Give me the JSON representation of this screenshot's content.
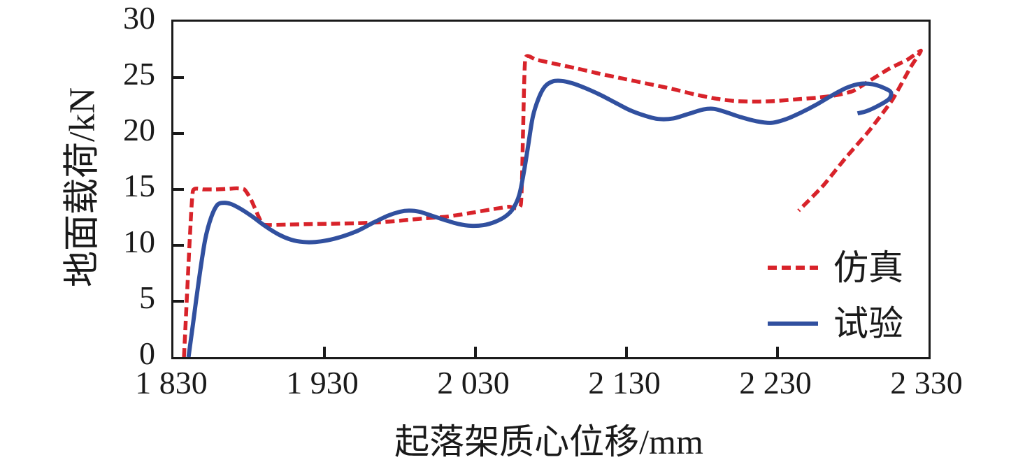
{
  "figure": {
    "background": "#ffffff",
    "axis_color": "#1a1a1a",
    "ylabel": "地面载荷/kN",
    "xlabel": "起落架质心位移/mm",
    "x_tick_labels": [
      "1 830",
      "1 930",
      "2 030",
      "2 130",
      "2 230",
      "2 330"
    ],
    "x_tick_values": [
      1830,
      1930,
      2030,
      2130,
      2230,
      2330
    ],
    "y_tick_labels": [
      "0",
      "5",
      "10",
      "15",
      "20",
      "25",
      "30"
    ],
    "y_tick_values": [
      0,
      5,
      10,
      15,
      20,
      25,
      30
    ],
    "legend": [
      {
        "label": "仿真",
        "color": "#d8232a",
        "dash": true
      },
      {
        "label": "试验",
        "color": "#31509f",
        "dash": false
      }
    ]
  },
  "chart_data": {
    "type": "line",
    "title": "",
    "xlabel": "起落架质心位移/mm",
    "ylabel": "地面载荷/kN",
    "xlim": [
      1830,
      2330
    ],
    "ylim": [
      0,
      30
    ],
    "x_ticks": [
      1830,
      1930,
      2030,
      2130,
      2230,
      2330
    ],
    "y_ticks": [
      0,
      5,
      10,
      15,
      20,
      25,
      30
    ],
    "grid": false,
    "legend_position": "inside-right",
    "series": [
      {
        "name": "仿真",
        "style": "dashed",
        "color": "#d8232a",
        "stroke_width": 5.5,
        "smoothing": 0.5,
        "points": [
          [
            1837,
            0
          ],
          [
            1839,
            5.5
          ],
          [
            1841,
            11
          ],
          [
            1843,
            14.9
          ],
          [
            1850,
            15
          ],
          [
            1858,
            15
          ],
          [
            1866,
            15.05
          ],
          [
            1872,
            15.1
          ],
          [
            1877,
            15
          ],
          [
            1881,
            14.2
          ],
          [
            1885,
            13.0
          ],
          [
            1889,
            11.9
          ],
          [
            1895,
            11.82
          ],
          [
            1905,
            11.85
          ],
          [
            1920,
            11.9
          ],
          [
            1935,
            11.93
          ],
          [
            1950,
            11.97
          ],
          [
            1965,
            12.05
          ],
          [
            1980,
            12.2
          ],
          [
            1995,
            12.4
          ],
          [
            2010,
            12.55
          ],
          [
            2025,
            12.85
          ],
          [
            2040,
            13.2
          ],
          [
            2052,
            13.45
          ],
          [
            2060,
            13.6
          ],
          [
            2061.5,
            20
          ],
          [
            2063,
            26.7
          ],
          [
            2070,
            26.6
          ],
          [
            2082,
            26.25
          ],
          [
            2096,
            25.85
          ],
          [
            2112,
            25.35
          ],
          [
            2128,
            24.9
          ],
          [
            2144,
            24.45
          ],
          [
            2160,
            24.0
          ],
          [
            2175,
            23.5
          ],
          [
            2190,
            23.1
          ],
          [
            2202,
            22.9
          ],
          [
            2215,
            22.85
          ],
          [
            2228,
            22.9
          ],
          [
            2242,
            23.05
          ],
          [
            2256,
            23.2
          ],
          [
            2268,
            23.4
          ],
          [
            2280,
            23.8
          ],
          [
            2292,
            24.8
          ],
          [
            2304,
            25.8
          ],
          [
            2316,
            26.6
          ],
          [
            2325,
            27.4
          ],
          [
            2318,
            25.9
          ],
          [
            2306,
            23.0
          ],
          [
            2291,
            20.3
          ],
          [
            2275,
            17.8
          ],
          [
            2260,
            15.3
          ],
          [
            2244,
            13.1
          ]
        ]
      },
      {
        "name": "试验",
        "style": "solid",
        "color": "#31509f",
        "stroke_width": 6,
        "smoothing": 0.9,
        "points": [
          [
            1840,
            0
          ],
          [
            1843,
            3
          ],
          [
            1847,
            7
          ],
          [
            1851,
            10.5
          ],
          [
            1855,
            12.5
          ],
          [
            1859,
            13.6
          ],
          [
            1863,
            13.8
          ],
          [
            1868,
            13.7
          ],
          [
            1874,
            13.3
          ],
          [
            1882,
            12.6
          ],
          [
            1891,
            11.7
          ],
          [
            1900,
            10.95
          ],
          [
            1908,
            10.5
          ],
          [
            1916,
            10.3
          ],
          [
            1924,
            10.3
          ],
          [
            1932,
            10.45
          ],
          [
            1942,
            10.8
          ],
          [
            1952,
            11.3
          ],
          [
            1962,
            12.0
          ],
          [
            1972,
            12.65
          ],
          [
            1980,
            13.0
          ],
          [
            1986,
            13.1
          ],
          [
            1993,
            13.0
          ],
          [
            2001,
            12.65
          ],
          [
            2010,
            12.25
          ],
          [
            2019,
            11.9
          ],
          [
            2027,
            11.75
          ],
          [
            2035,
            11.8
          ],
          [
            2043,
            12.1
          ],
          [
            2050,
            12.6
          ],
          [
            2055,
            13.3
          ],
          [
            2059,
            14.5
          ],
          [
            2062,
            16.5
          ],
          [
            2065,
            19
          ],
          [
            2068,
            21.5
          ],
          [
            2072,
            23.2
          ],
          [
            2076,
            24.2
          ],
          [
            2081,
            24.65
          ],
          [
            2087,
            24.7
          ],
          [
            2094,
            24.5
          ],
          [
            2102,
            24.1
          ],
          [
            2112,
            23.5
          ],
          [
            2122,
            22.8
          ],
          [
            2132,
            22.1
          ],
          [
            2142,
            21.6
          ],
          [
            2151,
            21.3
          ],
          [
            2161,
            21.35
          ],
          [
            2171,
            21.75
          ],
          [
            2181,
            22.15
          ],
          [
            2188,
            22.2
          ],
          [
            2196,
            21.9
          ],
          [
            2206,
            21.45
          ],
          [
            2216,
            21.1
          ],
          [
            2226,
            20.95
          ],
          [
            2236,
            21.3
          ],
          [
            2246,
            21.9
          ],
          [
            2256,
            22.6
          ],
          [
            2266,
            23.4
          ],
          [
            2276,
            24.1
          ],
          [
            2285,
            24.45
          ],
          [
            2293,
            24.4
          ],
          [
            2300,
            24.1
          ],
          [
            2305,
            23.7
          ],
          [
            2304,
            23.1
          ],
          [
            2297,
            22.5
          ],
          [
            2289,
            22.0
          ],
          [
            2283,
            21.8
          ]
        ]
      }
    ]
  }
}
